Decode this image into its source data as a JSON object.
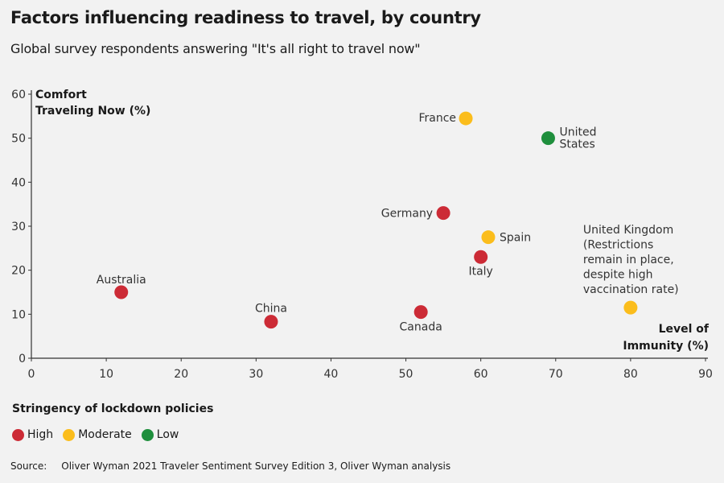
{
  "title": "Factors influencing readiness to travel, by country",
  "subtitle": "Global survey respondents answering \"It's all right to travel now\"",
  "chart_data": {
    "type": "scatter",
    "xlabel": [
      "Level of",
      "Immunity (%)"
    ],
    "ylabel": [
      "Comfort",
      "Traveling Now (%)"
    ],
    "xlim": [
      0,
      90
    ],
    "ylim": [
      0,
      60
    ],
    "xticks": [
      0,
      10,
      20,
      30,
      40,
      50,
      60,
      70,
      80,
      90
    ],
    "yticks": [
      0,
      10,
      20,
      30,
      40,
      50,
      60
    ],
    "grid": false,
    "points": [
      {
        "name": "Australia",
        "label_lines": [
          "Australia"
        ],
        "x": 12,
        "y": 15,
        "stringency": "high"
      },
      {
        "name": "China",
        "label_lines": [
          "China"
        ],
        "x": 32,
        "y": 8.3,
        "stringency": "high"
      },
      {
        "name": "Canada",
        "label_lines": [
          "Canada"
        ],
        "x": 52,
        "y": 10.5,
        "stringency": "high"
      },
      {
        "name": "Germany",
        "label_lines": [
          "Germany"
        ],
        "x": 55,
        "y": 33,
        "stringency": "high"
      },
      {
        "name": "Italy",
        "label_lines": [
          "Italy"
        ],
        "x": 60,
        "y": 23,
        "stringency": "high"
      },
      {
        "name": "Spain",
        "label_lines": [
          "Spain"
        ],
        "x": 61,
        "y": 27.5,
        "stringency": "moderate"
      },
      {
        "name": "France",
        "label_lines": [
          "France"
        ],
        "x": 58,
        "y": 54.5,
        "stringency": "moderate"
      },
      {
        "name": "United States",
        "label_lines": [
          "United",
          "States"
        ],
        "x": 69,
        "y": 50,
        "stringency": "low"
      },
      {
        "name": "United Kingdom",
        "label_lines": [
          "United Kingdom",
          "(Restrictions",
          "remain in place,",
          "despite high",
          "vaccination rate)"
        ],
        "x": 80,
        "y": 11.5,
        "stringency": "moderate"
      }
    ]
  },
  "legend": {
    "title": "Stringency of lockdown policies",
    "items": [
      {
        "key": "high",
        "label": "High",
        "color": "#cc2b36"
      },
      {
        "key": "moderate",
        "label": "Moderate",
        "color": "#fbbd1c"
      },
      {
        "key": "low",
        "label": "Low",
        "color": "#1f8f3d"
      }
    ]
  },
  "source": {
    "label": "Source:",
    "text": "Oliver Wyman 2021 Traveler Sentiment Survey Edition 3, Oliver Wyman analysis"
  }
}
